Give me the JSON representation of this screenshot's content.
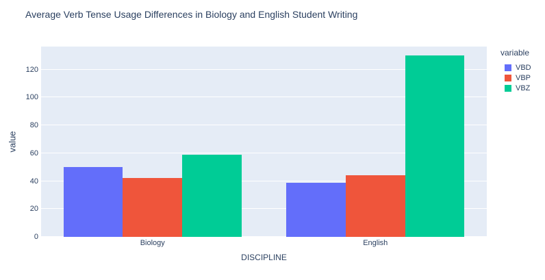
{
  "title": "Average Verb Tense Usage Differences in Biology and English Student Writing",
  "colors": {
    "text": "#2a3f5f",
    "plot_background": "#e5ecf6",
    "gridline": "#ffffff",
    "paper_background": "#ffffff"
  },
  "chart_data": {
    "type": "bar",
    "mode": "grouped",
    "title": "Average Verb Tense Usage Differences in Biology and English Student Writing",
    "xlabel": "DISCIPLINE",
    "ylabel": "value",
    "categories": [
      "Biology",
      "English"
    ],
    "series": [
      {
        "name": "VBD",
        "color": "#636EFA",
        "values": [
          50,
          39
        ]
      },
      {
        "name": "VBP",
        "color": "#EF553B",
        "values": [
          42,
          44
        ]
      },
      {
        "name": "VBZ",
        "color": "#00CC96",
        "values": [
          59,
          130
        ]
      }
    ],
    "yticks": [
      0,
      20,
      40,
      60,
      80,
      100,
      120
    ],
    "ylim": [
      0,
      136.5
    ],
    "grid": true,
    "legend_title": "variable",
    "legend_position": "top-right-outside"
  }
}
